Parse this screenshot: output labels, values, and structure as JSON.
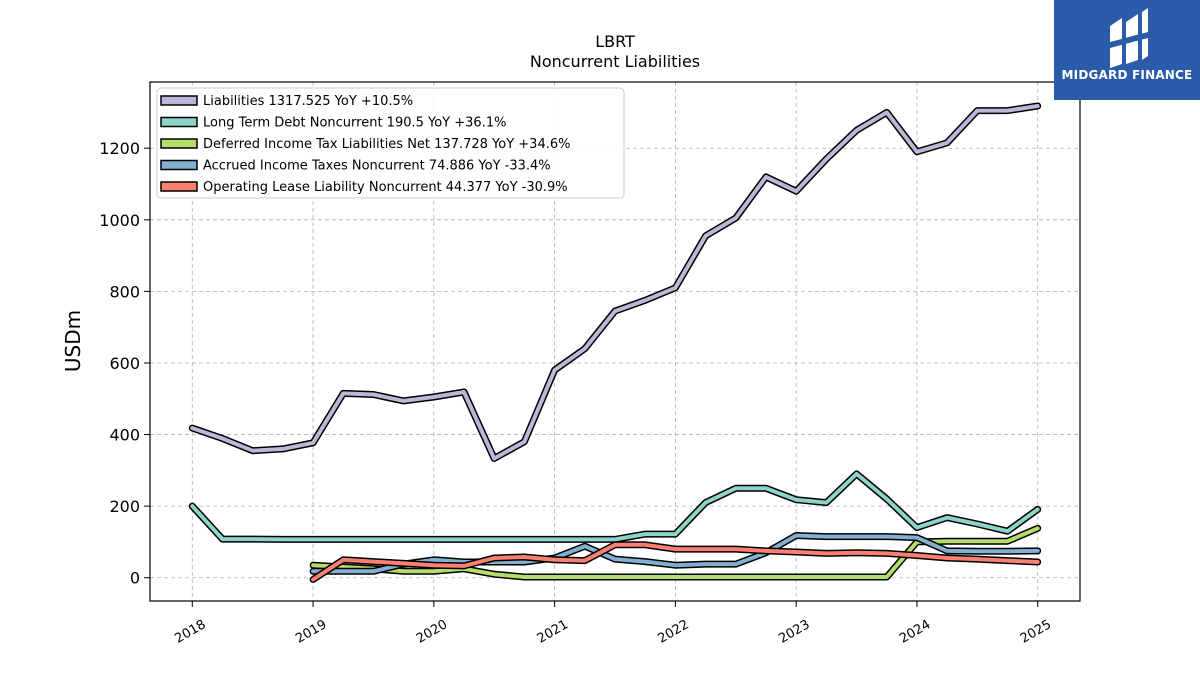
{
  "brand": {
    "name": "MIDGARD FINANCE",
    "color": "#2a5caa"
  },
  "chart_data": {
    "type": "line",
    "title": "LBRT",
    "subtitle": "Noncurrent  Liabilities",
    "ylabel": "USDm",
    "ylim": [
      -65,
      1385
    ],
    "xlim": [
      2017.65,
      2025.35
    ],
    "yticks": [
      0,
      200,
      400,
      600,
      800,
      1000,
      1200
    ],
    "xticks": [
      2018,
      2019,
      2020,
      2021,
      2022,
      2023,
      2024,
      2025
    ],
    "grid": true,
    "legend_position": "top-left",
    "series": [
      {
        "name": "Liabilities",
        "legend": "Liabilities  1317.525 YoY +10.5%",
        "color": "#bcb6d9",
        "x": [
          2018.0,
          2018.25,
          2018.5,
          2018.75,
          2019.0,
          2019.25,
          2019.5,
          2019.75,
          2020.0,
          2020.25,
          2020.5,
          2020.75,
          2021.0,
          2021.25,
          2021.5,
          2021.75,
          2022.0,
          2022.25,
          2022.5,
          2022.75,
          2023.0,
          2023.25,
          2023.5,
          2023.75,
          2024.0,
          2024.25,
          2024.5,
          2024.75,
          2025.0
        ],
        "values": [
          418,
          389,
          355,
          360,
          377,
          515,
          512,
          494,
          505,
          519,
          333,
          380,
          580,
          640,
          745,
          775,
          810,
          955,
          1005,
          1120,
          1080,
          1170,
          1250,
          1300,
          1190,
          1215,
          1305,
          1305,
          1318
        ]
      },
      {
        "name": "Long Term Debt Noncurrent",
        "legend": "Long Term Debt Noncurrent  190.5 YoY +36.1%",
        "color": "#8dd3c7",
        "x": [
          2018.0,
          2018.25,
          2018.5,
          2018.75,
          2019.0,
          2019.25,
          2019.5,
          2019.75,
          2020.0,
          2020.25,
          2020.5,
          2020.75,
          2021.0,
          2021.25,
          2021.5,
          2021.75,
          2022.0,
          2022.25,
          2022.5,
          2022.75,
          2023.0,
          2023.25,
          2023.5,
          2023.75,
          2024.0,
          2024.25,
          2024.5,
          2024.75,
          2025.0
        ],
        "values": [
          200,
          108,
          108,
          107,
          107,
          107,
          107,
          107,
          107,
          107,
          107,
          107,
          107,
          107,
          107,
          122,
          122,
          210,
          250,
          250,
          218,
          210,
          290,
          220,
          140,
          168,
          150,
          130,
          191
        ]
      },
      {
        "name": "Deferred Income Tax Liabilities Net",
        "legend": "Deferred Income Tax Liabilities Net  137.728 YoY +34.6%",
        "color": "#b3de69",
        "x": [
          2019.0,
          2019.25,
          2019.5,
          2019.75,
          2020.0,
          2020.25,
          2020.5,
          2020.75,
          2021.0,
          2021.25,
          2021.5,
          2021.75,
          2022.0,
          2022.25,
          2022.5,
          2022.75,
          2023.0,
          2023.25,
          2023.5,
          2023.75,
          2024.0,
          2024.25,
          2024.5,
          2024.75,
          2025.0
        ],
        "values": [
          35,
          30,
          25,
          18,
          18,
          25,
          10,
          2,
          2,
          2,
          2,
          2,
          2,
          2,
          2,
          2,
          2,
          2,
          2,
          2,
          100,
          102,
          102,
          102,
          138
        ]
      },
      {
        "name": "Accrued Income Taxes Noncurrent",
        "legend": "Accrued Income Taxes Noncurrent  74.886 YoY -33.4%",
        "color": "#80b1d3",
        "x": [
          2019.0,
          2019.25,
          2019.5,
          2019.75,
          2020.0,
          2020.25,
          2020.5,
          2020.75,
          2021.0,
          2021.25,
          2021.5,
          2021.75,
          2022.0,
          2022.25,
          2022.5,
          2022.75,
          2023.0,
          2023.25,
          2023.5,
          2023.75,
          2024.0,
          2024.25,
          2024.5,
          2024.75,
          2025.0
        ],
        "values": [
          18,
          18,
          18,
          38,
          50,
          44,
          44,
          44,
          55,
          88,
          52,
          45,
          35,
          38,
          38,
          70,
          118,
          115,
          115,
          115,
          112,
          75,
          74,
          74,
          75
        ]
      },
      {
        "name": "Operating Lease Liability Noncurrent",
        "legend": "Operating Lease Liability Noncurrent  44.377 YoY -30.9%",
        "color": "#fb8072",
        "x": [
          2019.0,
          2019.25,
          2019.5,
          2019.75,
          2020.0,
          2020.25,
          2020.5,
          2020.75,
          2021.0,
          2021.25,
          2021.5,
          2021.75,
          2022.0,
          2022.25,
          2022.5,
          2022.75,
          2023.0,
          2023.25,
          2023.5,
          2023.75,
          2024.0,
          2024.25,
          2024.5,
          2024.75,
          2025.0
        ],
        "values": [
          -5,
          50,
          45,
          40,
          35,
          33,
          55,
          58,
          50,
          48,
          92,
          92,
          80,
          80,
          80,
          75,
          72,
          68,
          70,
          68,
          62,
          55,
          52,
          48,
          44
        ]
      }
    ]
  }
}
